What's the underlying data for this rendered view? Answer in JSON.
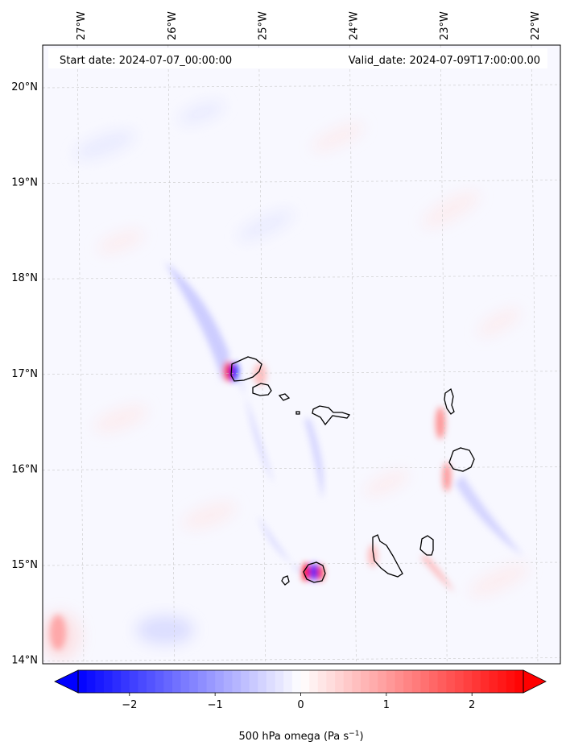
{
  "map": {
    "header": {
      "start_date": "Start date: 2024-07-07_00:00:00",
      "valid_date": "Valid_date: 2024-07-09T17:00:00.00"
    },
    "lon_ticks": [
      {
        "value": -27,
        "label": "27°W"
      },
      {
        "value": -26,
        "label": "26°W"
      },
      {
        "value": -25,
        "label": "25°W"
      },
      {
        "value": -24,
        "label": "24°W"
      },
      {
        "value": -23,
        "label": "23°W"
      },
      {
        "value": -22,
        "label": "22°W"
      }
    ],
    "lat_ticks": [
      {
        "value": 20,
        "label": "20°N"
      },
      {
        "value": 19,
        "label": "19°N"
      },
      {
        "value": 18,
        "label": "18°N"
      },
      {
        "value": 17,
        "label": "17°N"
      },
      {
        "value": 16,
        "label": "16°N"
      },
      {
        "value": 15,
        "label": "15°N"
      },
      {
        "value": 14,
        "label": "14°N"
      }
    ],
    "colors": {
      "negative": "#0000ff",
      "zero": "#ffffff",
      "positive": "#ff0000",
      "coastline": "#000000",
      "gridline": "#c8c8c8"
    }
  },
  "colorbar": {
    "min": -2.6,
    "max": 2.6,
    "ticks": [
      {
        "value": -2,
        "label": "−2"
      },
      {
        "value": -1,
        "label": "−1"
      },
      {
        "value": 0,
        "label": "0"
      },
      {
        "value": 1,
        "label": "1"
      },
      {
        "value": 2,
        "label": "2"
      }
    ],
    "label_main": "500 hPa omega (Pa s",
    "label_sup": "−1",
    "label_end": ")",
    "extend": "both"
  }
}
